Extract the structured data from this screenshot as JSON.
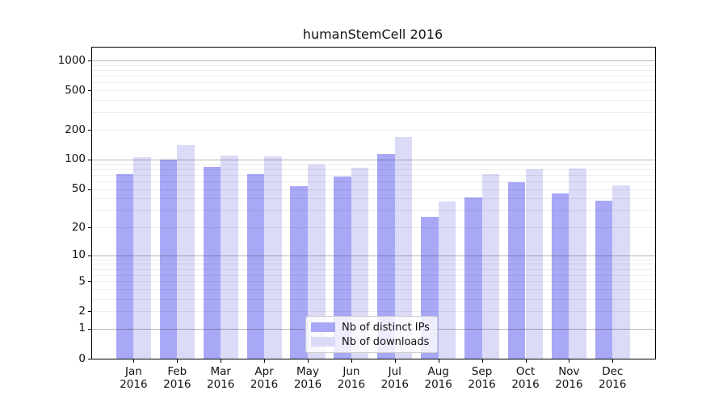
{
  "chart_data": {
    "type": "bar",
    "title": "humanStemCell 2016",
    "categories": [
      "Jan",
      "Feb",
      "Mar",
      "Apr",
      "May",
      "Jun",
      "Jul",
      "Aug",
      "Sep",
      "Oct",
      "Nov",
      "Dec"
    ],
    "x_tick_second_line": "2016",
    "series": [
      {
        "name": "Nb of distinct IPs",
        "color": "#a8a8f7",
        "values": [
          71,
          100,
          84,
          71,
          53,
          67,
          114,
          26,
          41,
          59,
          45,
          38
        ]
      },
      {
        "name": "Nb of downloads",
        "color": "#dbdbf8",
        "values": [
          105,
          141,
          109,
          108,
          90,
          82,
          168,
          37,
          71,
          80,
          81,
          54
        ]
      }
    ],
    "xlabel": "",
    "ylabel": "",
    "yscale": "log10(value+1)",
    "yticks": [
      0,
      1,
      2,
      5,
      10,
      20,
      50,
      100,
      200,
      500,
      1000
    ],
    "ylim": [
      0,
      1350
    ],
    "grid": true,
    "legend_position": "inside-lower-center",
    "colors": {
      "axis": "#000000",
      "major_gridline": "#9e9e9e",
      "minor_gridline": "#ededed",
      "legend_border": "#cccccc",
      "background": "#ffffff"
    }
  }
}
